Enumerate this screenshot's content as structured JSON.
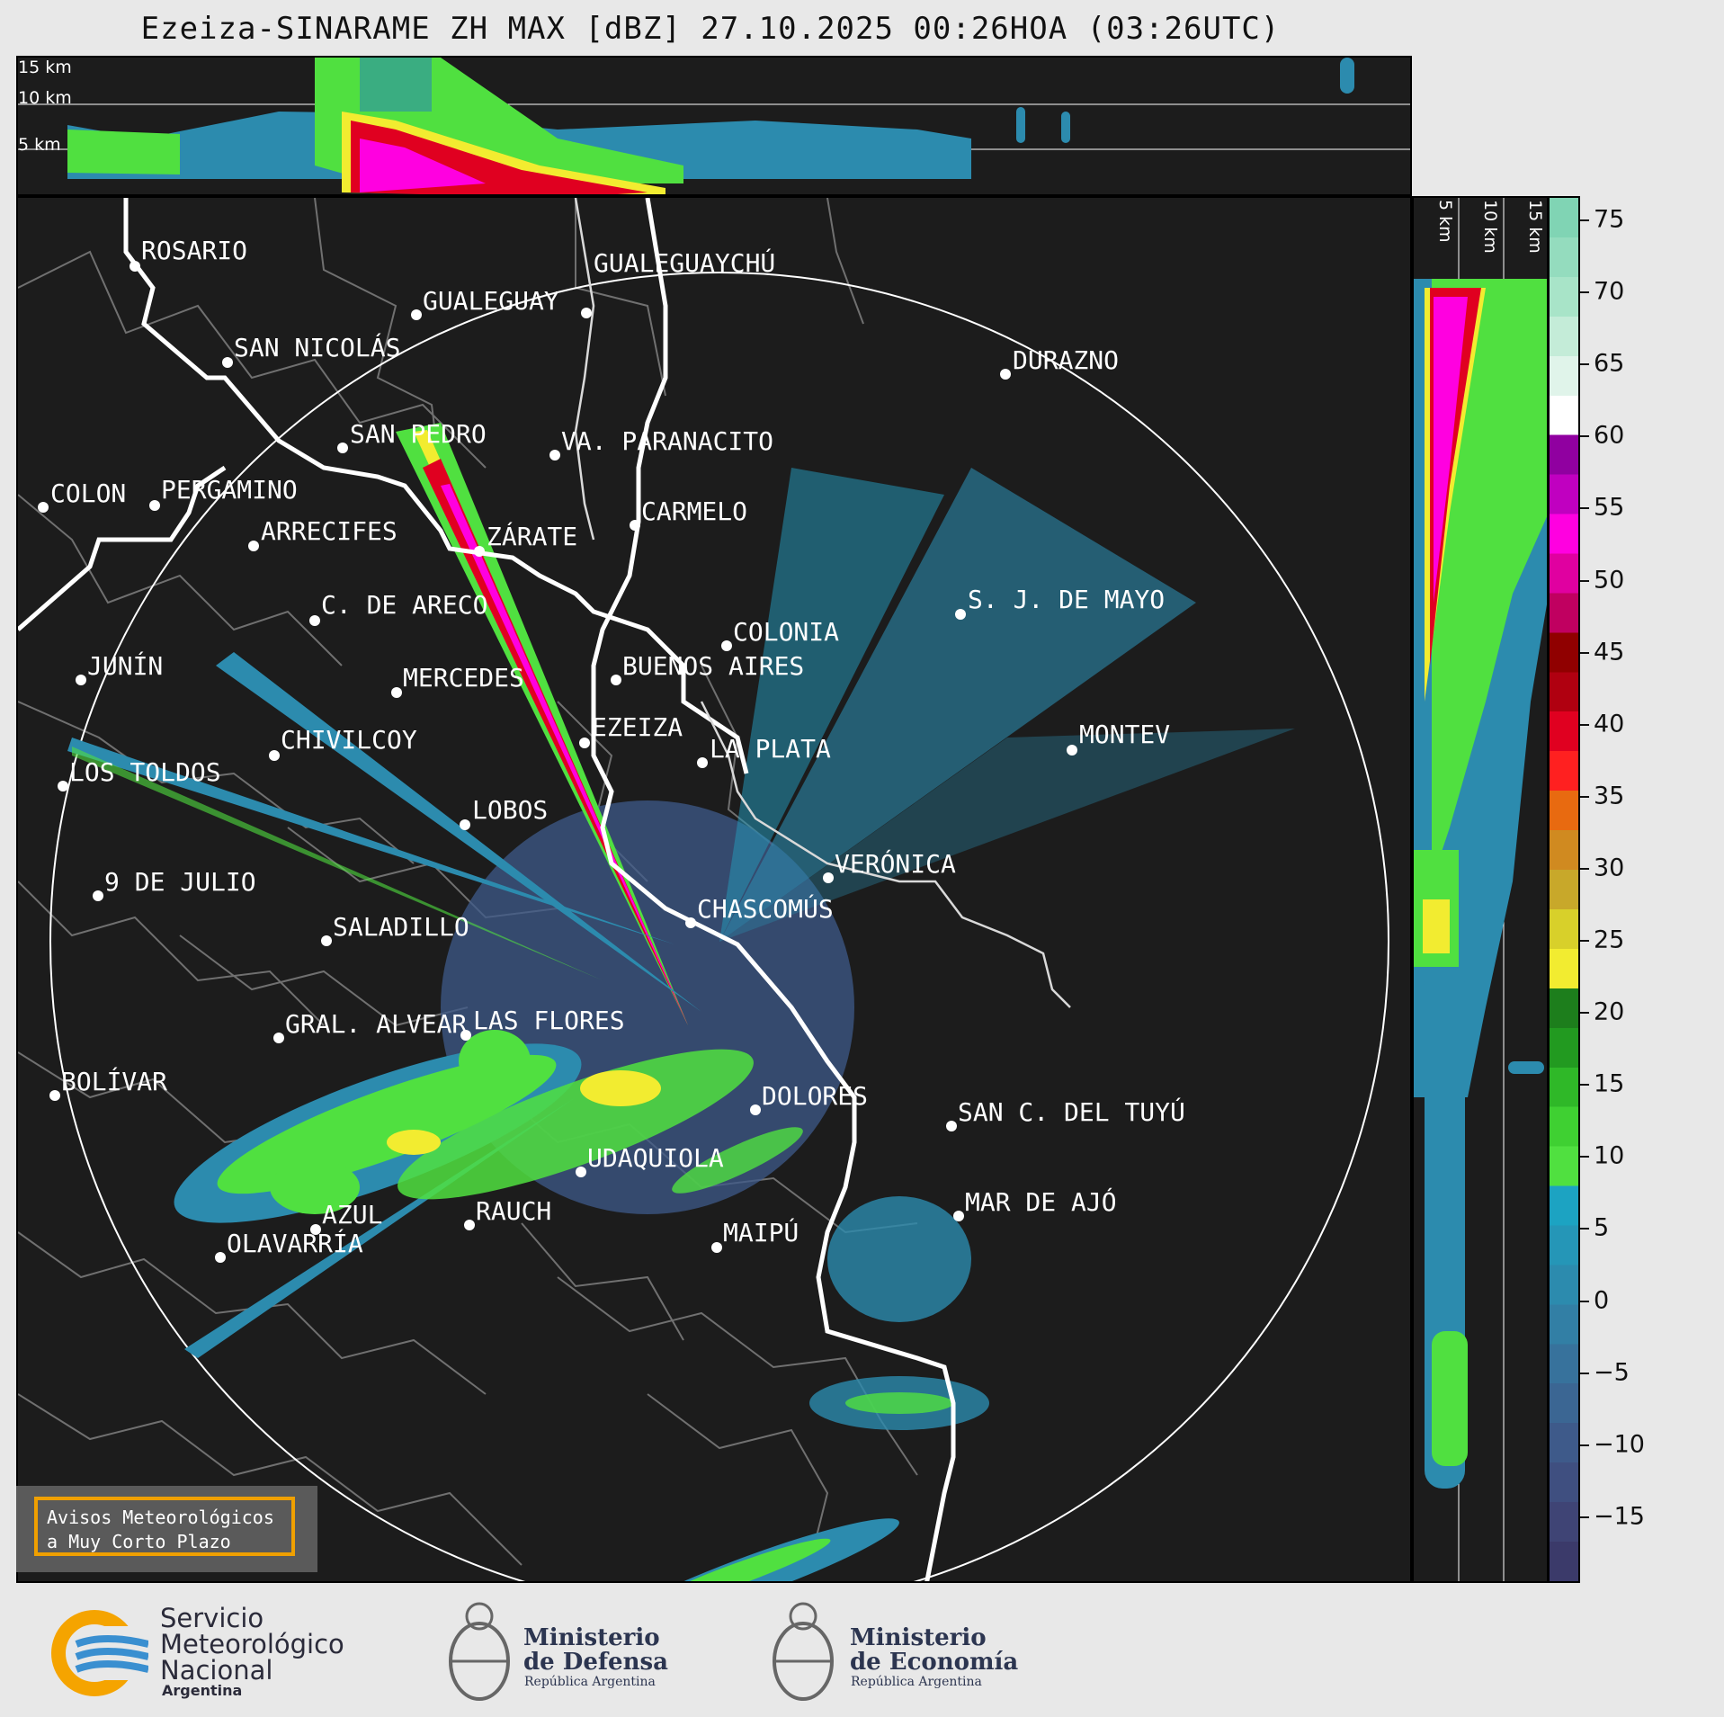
{
  "title": "Ezeiza-SINARAME ZH MAX [dBZ] 27.10.2025 00:26HOA (03:26UTC)",
  "top_panel": {
    "altitude_labels": [
      "15 km",
      "10 km",
      "5 km"
    ]
  },
  "right_panel": {
    "altitude_labels": [
      "5 km",
      "10 km",
      "15 km"
    ]
  },
  "colorbar": {
    "unit": "dBZ",
    "ticks": [
      "75",
      "70",
      "65",
      "60",
      "55",
      "50",
      "45",
      "40",
      "35",
      "30",
      "25",
      "20",
      "15",
      "10",
      "5",
      "0",
      "−5",
      "−10",
      "−15"
    ],
    "colors": [
      "#3b3a6a",
      "#3f4475",
      "#3f4f80",
      "#3e5a8a",
      "#3b6693",
      "#37729c",
      "#327fa5",
      "#2c8bae",
      "#2596b7",
      "#1ca3c2",
      "#50e040",
      "#3fd032",
      "#2fb828",
      "#229a20",
      "#1d7e1c",
      "#f2ec30",
      "#d8d02a",
      "#c8a82a",
      "#d08a20",
      "#e86a10",
      "#ff2020",
      "#e00020",
      "#b00010",
      "#900000",
      "#c00060",
      "#e000a0",
      "#ff00e0",
      "#c000c0",
      "#9000a0",
      "#ffffff",
      "#e0f4ea",
      "#c4ecd8",
      "#a8e4c8",
      "#94dcbe",
      "#80d4b4"
    ]
  },
  "cities": [
    {
      "name": "ROSARIO"
    },
    {
      "name": "GUALEGUAYCHÚ"
    },
    {
      "name": "GUALEGUAY"
    },
    {
      "name": "SAN NICOLÁS"
    },
    {
      "name": "DURAZNO"
    },
    {
      "name": "SAN PEDRO"
    },
    {
      "name": "VA. PARANACITO"
    },
    {
      "name": "COLON"
    },
    {
      "name": "PERGAMINO"
    },
    {
      "name": "CARMELO"
    },
    {
      "name": "ARRECIFES"
    },
    {
      "name": "ZÁRATE"
    },
    {
      "name": "S. J. DE MAYO"
    },
    {
      "name": "C. DE ARECO"
    },
    {
      "name": "COLONIA"
    },
    {
      "name": "JUNÍN"
    },
    {
      "name": "BUENOS AIRES"
    },
    {
      "name": "MERCEDES"
    },
    {
      "name": "EZEIZA"
    },
    {
      "name": "MONTEV"
    },
    {
      "name": "CHIVILCOY"
    },
    {
      "name": "LA PLATA"
    },
    {
      "name": "LOS TOLDOS"
    },
    {
      "name": "LOBOS"
    },
    {
      "name": "VERÓNICA"
    },
    {
      "name": "9 DE JULIO"
    },
    {
      "name": "CHASCOMÚS"
    },
    {
      "name": "SALADILLO"
    },
    {
      "name": "GRAL. ALVEAR"
    },
    {
      "name": "LAS FLORES"
    },
    {
      "name": "BOLÍVAR"
    },
    {
      "name": "DOLORES"
    },
    {
      "name": "SAN C. DEL TUYÚ"
    },
    {
      "name": "UDAQUIOLA"
    },
    {
      "name": "MAR DE AJÓ"
    },
    {
      "name": "AZUL"
    },
    {
      "name": "RAUCH"
    },
    {
      "name": "OLAVARRÍA"
    },
    {
      "name": "MAIPÚ"
    }
  ],
  "badge": {
    "line1": "Avisos Meteorológicos",
    "line2": "a Muy Corto Plazo"
  },
  "footer": {
    "smn": {
      "line1": "Servicio",
      "line2": "Meteorológico",
      "line3": "Nacional",
      "sub": "Argentina"
    },
    "defensa": {
      "line1": "Ministerio",
      "line2": "de Defensa",
      "sub": "República Argentina"
    },
    "economia": {
      "line1": "Ministerio",
      "line2": "de Economía",
      "sub": "República Argentina"
    }
  }
}
